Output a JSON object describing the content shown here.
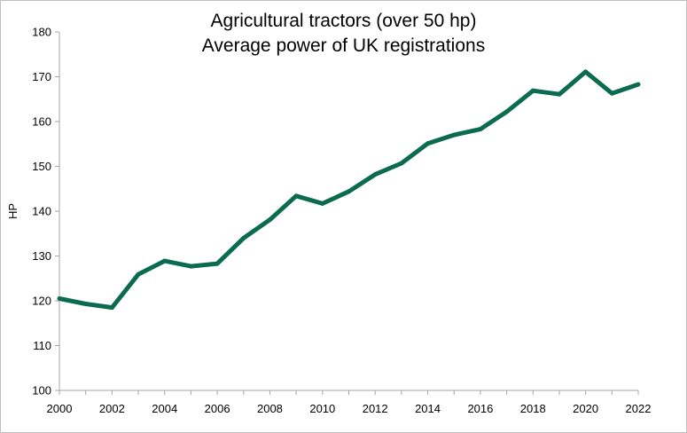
{
  "chart_data": {
    "type": "line",
    "title_line1": "Agricultural tractors (over 50 hp)",
    "title_line2": "Average power of UK registrations",
    "xlabel": "",
    "ylabel": "HP",
    "ylim": [
      100,
      180
    ],
    "xlim": [
      2000,
      2022
    ],
    "y_ticks": [
      "100",
      "110",
      "120",
      "130",
      "140",
      "150",
      "160",
      "170",
      "180"
    ],
    "x_ticks": [
      "2000",
      "2002",
      "2004",
      "2006",
      "2008",
      "2010",
      "2012",
      "2014",
      "2016",
      "2018",
      "2020",
      "2022"
    ],
    "grid": false,
    "legend": "none",
    "series": [
      {
        "color": "#0a6b4e",
        "x": [
          2000,
          2001,
          2002,
          2003,
          2004,
          2005,
          2006,
          2007,
          2008,
          2009,
          2010,
          2011,
          2012,
          2013,
          2014,
          2015,
          2016,
          2017,
          2018,
          2019,
          2020,
          2021,
          2022
        ],
        "values": [
          120.5,
          119.3,
          118.5,
          125.9,
          128.9,
          127.7,
          128.3,
          134.0,
          138.1,
          143.4,
          141.7,
          144.4,
          148.2,
          150.7,
          155.1,
          157.0,
          158.3,
          162.2,
          166.9,
          166.1,
          171.1,
          166.3,
          168.3
        ]
      }
    ]
  }
}
